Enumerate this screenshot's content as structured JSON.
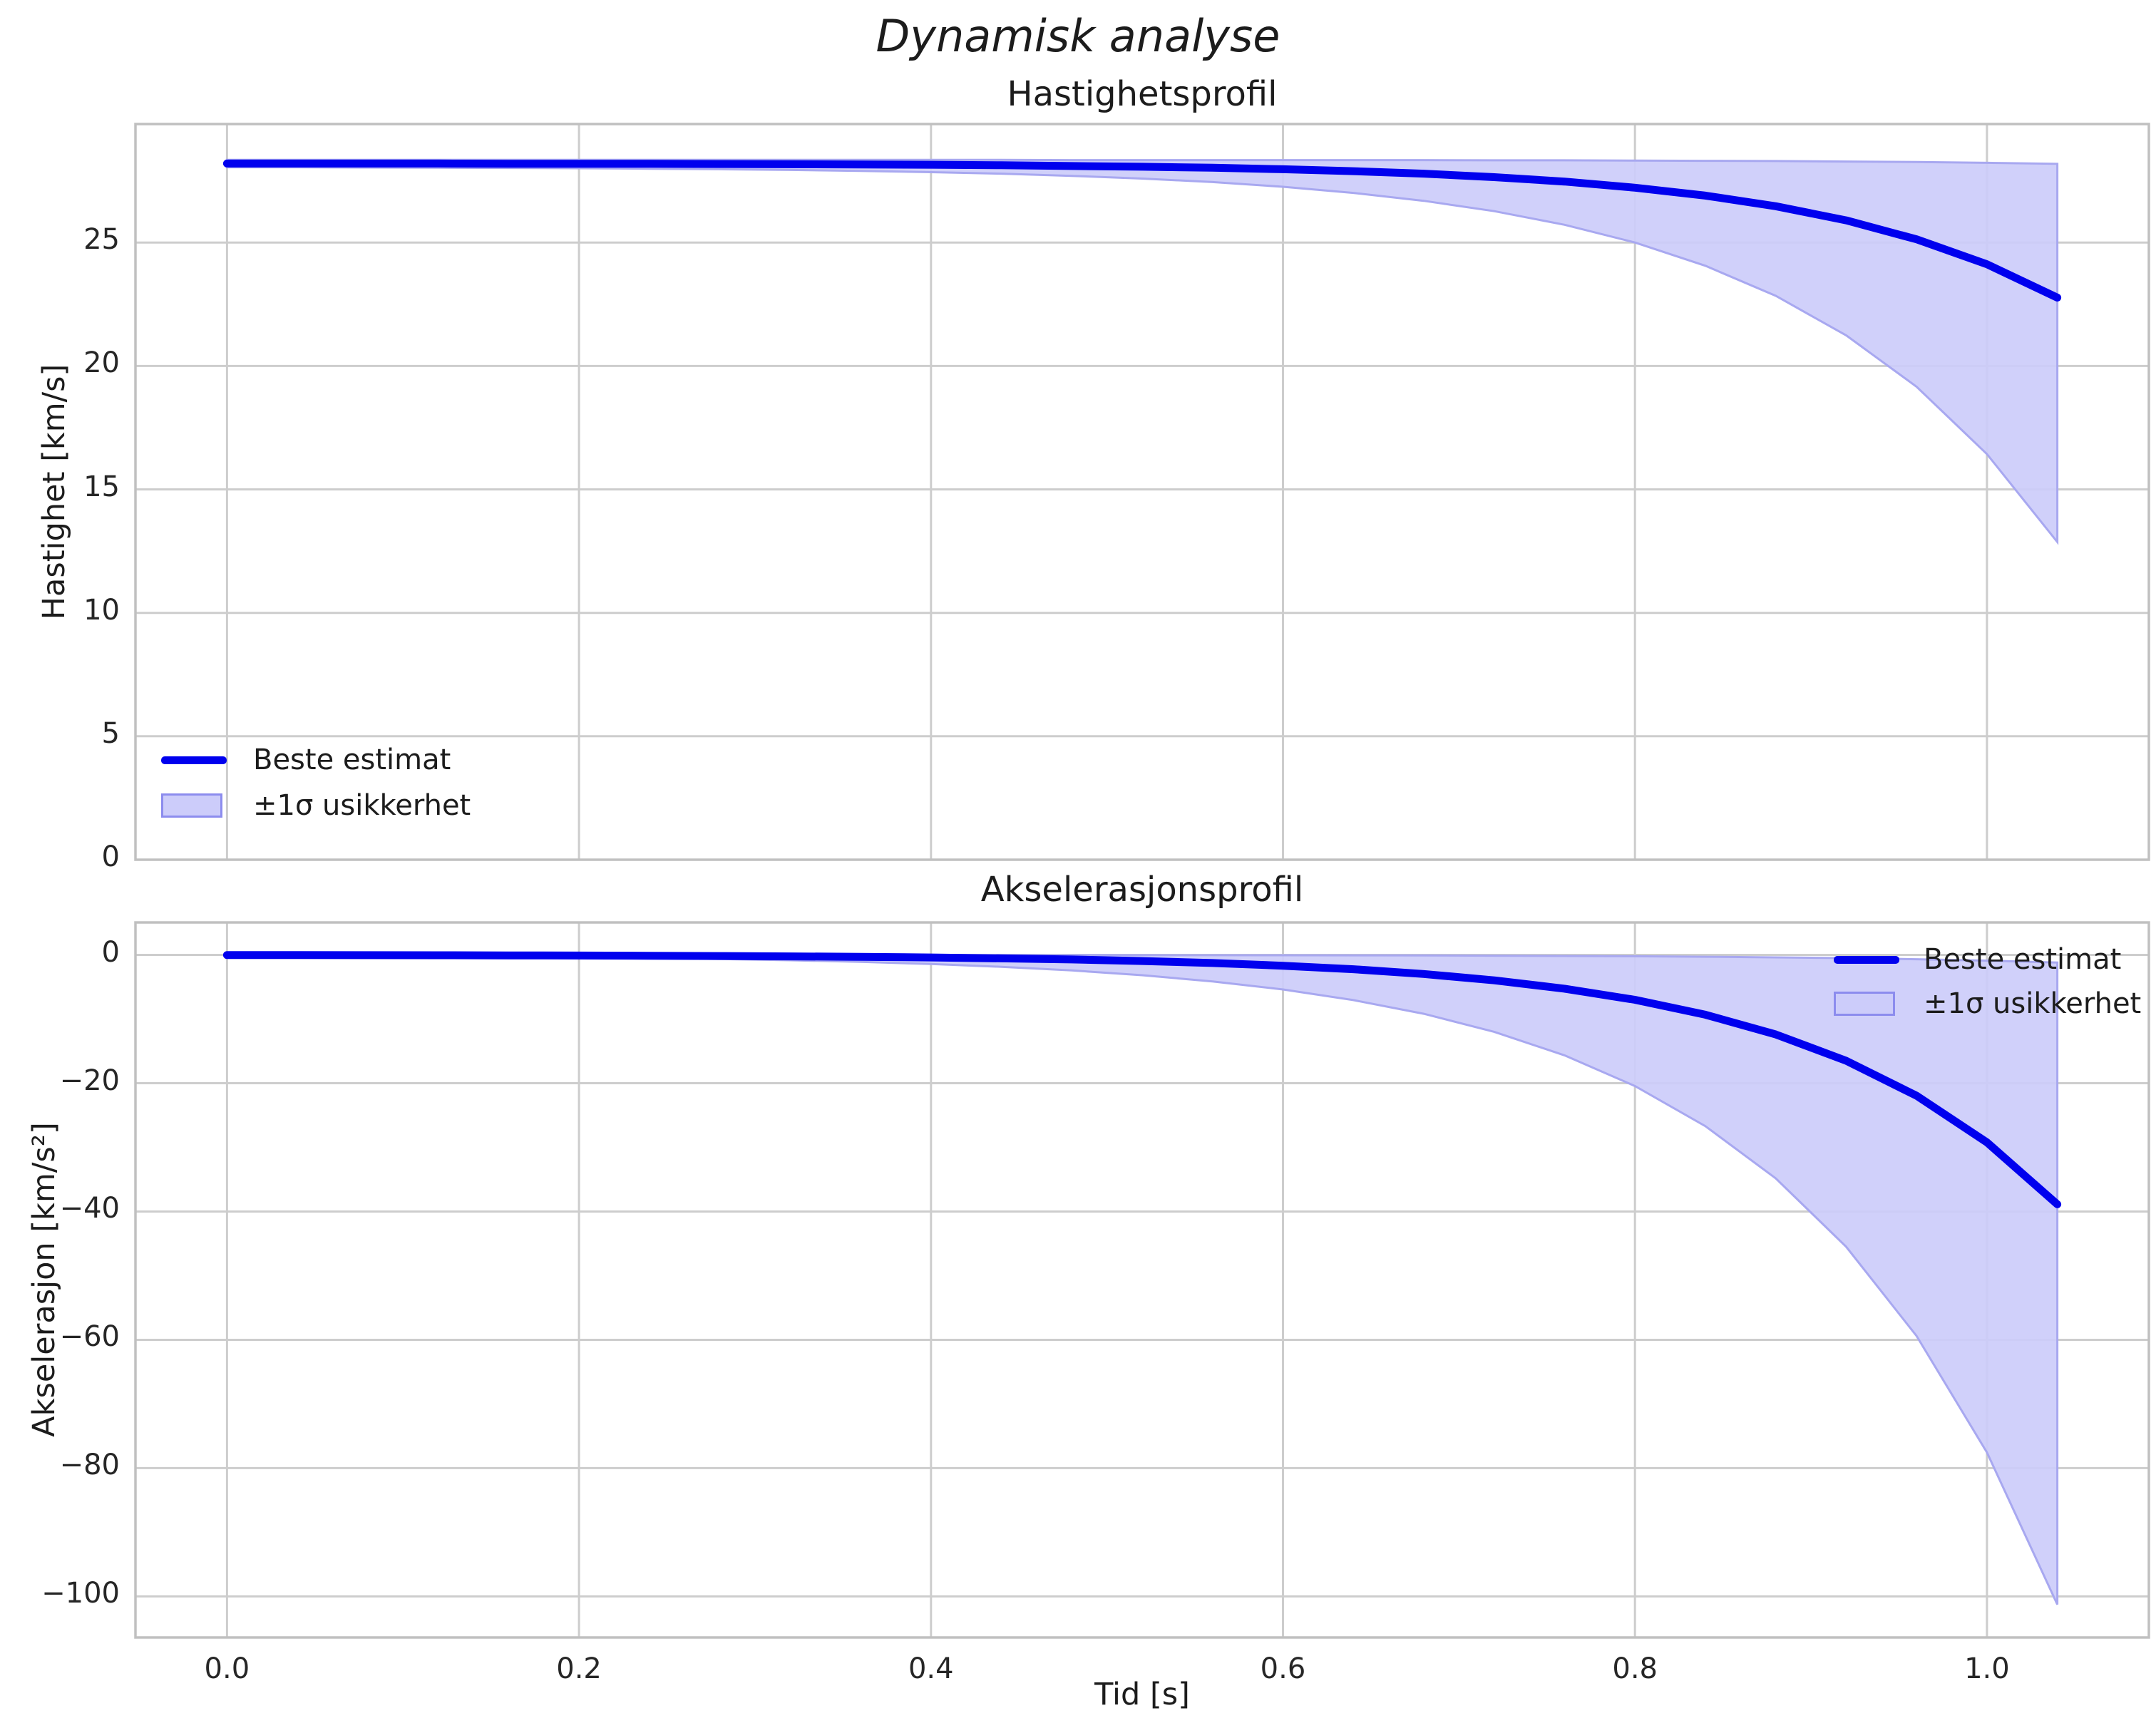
{
  "suptitle": "Dynamisk analyse",
  "xlabel": "Tid [s]",
  "legend": {
    "line_label": "Beste estimat",
    "band_label": "±1σ usikkerhet"
  },
  "colors": {
    "line": "#0000ee",
    "band_fill": "#ccccfa",
    "band_edge": "#a8a8f0",
    "legend_patch_edge": "#8c8cee",
    "grid": "#cdcdcd",
    "spine": "#c0c0c0",
    "text": "#1c1c1c",
    "background": "#ffffff"
  },
  "chart_data": [
    {
      "type": "line",
      "name": "velocity",
      "title": "Hastighetsprofil",
      "ylabel": "Hastighet [km/s]",
      "xlabel": "",
      "xlim": [
        -0.052,
        1.092
      ],
      "ylim": [
        0,
        29.8
      ],
      "grid": true,
      "xticks": [
        0.0,
        0.2,
        0.4,
        0.6,
        0.8,
        1.0
      ],
      "xticklabels": [],
      "yticks": [
        0,
        5,
        10,
        15,
        20,
        25
      ],
      "yticklabels": [
        "0",
        "5",
        "10",
        "15",
        "20",
        "25"
      ],
      "legend_position": "lower left",
      "x": [
        0.0,
        0.04,
        0.08,
        0.12,
        0.16,
        0.2,
        0.24,
        0.28,
        0.32,
        0.36,
        0.4,
        0.44,
        0.48,
        0.52,
        0.56,
        0.6,
        0.64,
        0.68,
        0.72,
        0.76,
        0.8,
        0.84,
        0.88,
        0.92,
        0.96,
        1.0,
        1.04
      ],
      "series": [
        {
          "name": "Beste estimat",
          "values": [
            28.2,
            28.2,
            28.2,
            28.2,
            28.19,
            28.19,
            28.19,
            28.18,
            28.17,
            28.16,
            28.15,
            28.13,
            28.1,
            28.07,
            28.03,
            27.97,
            27.89,
            27.79,
            27.65,
            27.47,
            27.22,
            26.9,
            26.47,
            25.9,
            25.13,
            24.12,
            22.77
          ]
        }
      ],
      "band": {
        "name": "±1σ usikkerhet",
        "upper": [
          28.35,
          28.35,
          28.35,
          28.35,
          28.35,
          28.35,
          28.35,
          28.35,
          28.35,
          28.35,
          28.35,
          28.35,
          28.34,
          28.34,
          28.34,
          28.34,
          28.34,
          28.34,
          28.33,
          28.33,
          28.32,
          28.31,
          28.3,
          28.28,
          28.26,
          28.23,
          28.19
        ],
        "lower": [
          28.05,
          28.05,
          28.04,
          28.03,
          28.02,
          28.01,
          27.99,
          27.97,
          27.94,
          27.9,
          27.85,
          27.79,
          27.7,
          27.59,
          27.45,
          27.26,
          27.01,
          26.69,
          26.27,
          25.72,
          25.0,
          24.06,
          22.84,
          21.24,
          19.16,
          16.43,
          12.87
        ]
      }
    },
    {
      "type": "line",
      "name": "acceleration",
      "title": "Akselerasjonsprofil",
      "ylabel": "Akselerasjon [km/s²]",
      "xlabel": "Tid [s]",
      "xlim": [
        -0.052,
        1.092
      ],
      "ylim": [
        -106.4,
        5.06
      ],
      "grid": true,
      "xticks": [
        0.0,
        0.2,
        0.4,
        0.6,
        0.8,
        1.0
      ],
      "xticklabels": [
        "0.0",
        "0.2",
        "0.4",
        "0.6",
        "0.8",
        "1.0"
      ],
      "yticks": [
        0,
        -20,
        -40,
        -60,
        -80,
        -100
      ],
      "yticklabels": [
        "0",
        "−20",
        "−40",
        "−60",
        "−80",
        "−100"
      ],
      "legend_position": "upper right",
      "x": [
        0.0,
        0.04,
        0.08,
        0.12,
        0.16,
        0.2,
        0.24,
        0.28,
        0.32,
        0.36,
        0.4,
        0.44,
        0.48,
        0.52,
        0.56,
        0.6,
        0.64,
        0.68,
        0.72,
        0.76,
        0.8,
        0.84,
        0.88,
        0.92,
        0.96,
        1.0,
        1.04
      ],
      "series": [
        {
          "name": "Beste estimat",
          "values": [
            -0.02,
            -0.03,
            -0.04,
            -0.05,
            -0.07,
            -0.1,
            -0.13,
            -0.17,
            -0.23,
            -0.3,
            -0.4,
            -0.54,
            -0.71,
            -0.95,
            -1.26,
            -1.68,
            -2.23,
            -2.97,
            -3.96,
            -5.26,
            -7.0,
            -9.32,
            -12.4,
            -16.5,
            -21.96,
            -29.22,
            -38.88
          ]
        }
      ],
      "band": {
        "name": "±1σ usikkerhet",
        "upper": [
          -0.001,
          -0.001,
          -0.001,
          -0.002,
          -0.002,
          -0.003,
          -0.004,
          -0.005,
          -0.007,
          -0.009,
          -0.012,
          -0.016,
          -0.022,
          -0.029,
          -0.038,
          -0.051,
          -0.068,
          -0.09,
          -0.12,
          -0.16,
          -0.21,
          -0.28,
          -0.38,
          -0.5,
          -0.67,
          -0.89,
          -1.18
        ],
        "lower": [
          -0.1,
          -0.13,
          -0.17,
          -0.22,
          -0.29,
          -0.37,
          -0.49,
          -0.64,
          -0.83,
          -1.09,
          -1.42,
          -1.85,
          -2.42,
          -3.16,
          -4.13,
          -5.39,
          -7.04,
          -9.18,
          -11.99,
          -15.65,
          -20.44,
          -26.69,
          -34.84,
          -45.49,
          -59.4,
          -77.56,
          -101.26
        ]
      }
    }
  ]
}
